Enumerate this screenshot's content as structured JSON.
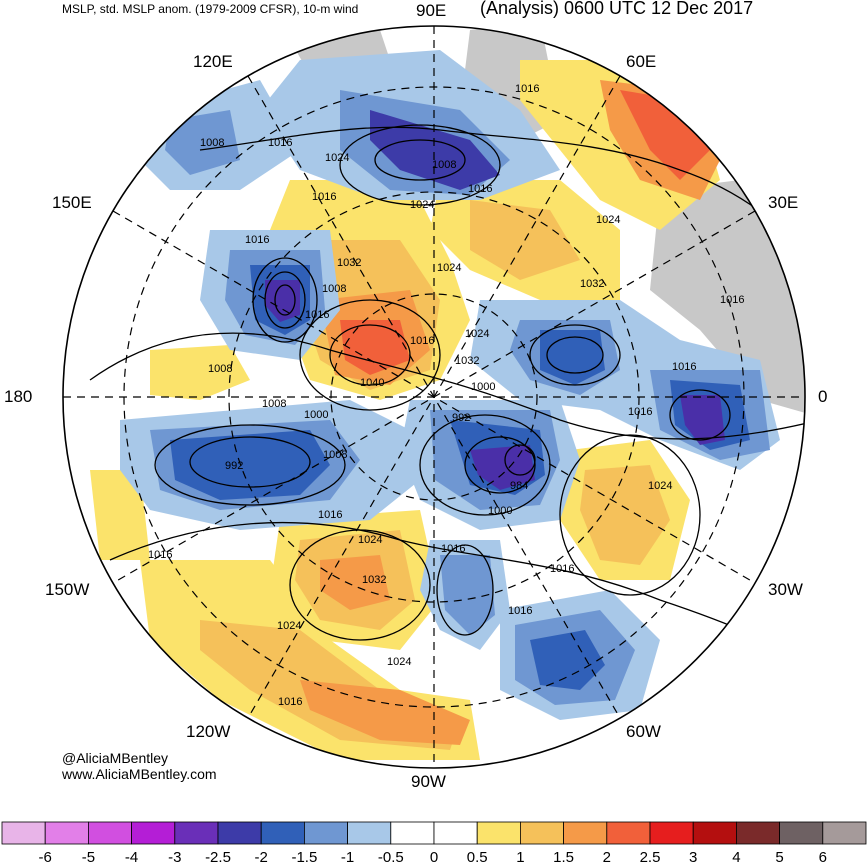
{
  "header": {
    "left": "MSLP, std. MSLP anom. (1979-2009 CFSR), 10-m wind",
    "right": "(Analysis) 0600 UTC 12 Dec 2017"
  },
  "longitude_labels": {
    "e90": "90E",
    "e60": "60E",
    "e30": "30E",
    "zero": "0",
    "w30": "30W",
    "w60": "60W",
    "w90": "90W",
    "w120": "120W",
    "w150": "150W",
    "d180": "180",
    "e150": "150E",
    "e120": "120E"
  },
  "isobar_labels": [
    "1016",
    "1008",
    "1016",
    "1024",
    "1008",
    "1016",
    "1024",
    "1016",
    "1024",
    "1016",
    "1016",
    "1032",
    "1024",
    "1008",
    "1016",
    "1032",
    "1024",
    "1016",
    "1032",
    "1008",
    "1016",
    "1040",
    "1000",
    "1008",
    "1000",
    "992",
    "1016",
    "992",
    "1008",
    "984",
    "1000",
    "1016",
    "1024",
    "1016",
    "1024",
    "1032",
    "1016",
    "1016",
    "1024",
    "1024",
    "1016",
    "1016"
  ],
  "credits": {
    "handle": "@AliciaMBentley",
    "site": "www.AliciaMBentley.com"
  },
  "colorbar": {
    "labels": [
      "-6",
      "-5",
      "-4",
      "-3",
      "-2.5",
      "-2",
      "-1.5",
      "-1",
      "-0.5",
      "0",
      "0.5",
      "1",
      "1.5",
      "2",
      "2.5",
      "3",
      "4",
      "5",
      "6"
    ],
    "colors": [
      "#e8b4e8",
      "#e27fe8",
      "#d14fe0",
      "#b41ed6",
      "#6a2fb8",
      "#3d3ba8",
      "#3060b8",
      "#6f97d2",
      "#a8c8e8",
      "#ffffff",
      "#ffffff",
      "#fbe36b",
      "#f5c15a",
      "#f59a48",
      "#f1603a",
      "#e61e1e",
      "#b40f0f",
      "#7a2a2a",
      "#6e6163",
      "#a59a9a"
    ]
  },
  "map_colors": {
    "strong_neg": "#4a2fa8",
    "neg": "#3b62b8",
    "mid_neg": "#6f97d2",
    "weak_neg": "#a8c8e8",
    "weak_pos": "#fbe36b",
    "pos": "#f5c15a",
    "mid_pos": "#f59a48",
    "strong_pos": "#f1603a",
    "hot": "#e61e1e",
    "land_missing": "#c8c8c8"
  }
}
